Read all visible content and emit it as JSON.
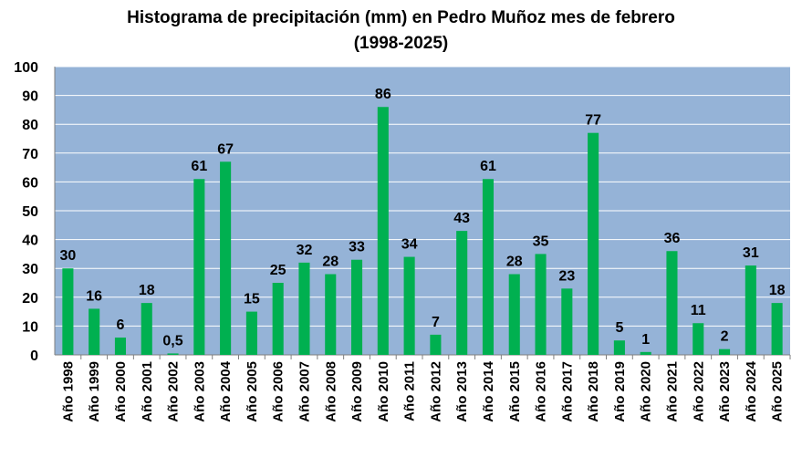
{
  "colors": {
    "plot_background": "#95b3d7",
    "bar": "#00b050",
    "gridline": "#ffffff",
    "axis": "#7f7f7f"
  },
  "chart_data": {
    "type": "bar",
    "title_line1": "Histograma de precipitación (mm) en Pedro Muñoz mes de febrero",
    "title_line2": "(1998-2025)",
    "xlabel": "",
    "ylabel": "",
    "ylim": [
      0,
      100
    ],
    "yticks": [
      0,
      10,
      20,
      30,
      40,
      50,
      60,
      70,
      80,
      90,
      100
    ],
    "grid": true,
    "legend": "none",
    "categories": [
      "Año 1998",
      "Año 1999",
      "Año 2000",
      "Año 2001",
      "Año 2002",
      "Año 2003",
      "Año 2004",
      "Año 2005",
      "Año 2006",
      "Año 2007",
      "Año 2008",
      "Año 2009",
      "Año 2010",
      "Año 2011",
      "Año 2012",
      "Año 2013",
      "Año 2014",
      "Año 2015",
      "Año 2016",
      "Año 2017",
      "Año 2018",
      "Año 2019",
      "Año 2020",
      "Año 2021",
      "Año 2022",
      "Año 2023",
      "Año 2024",
      "Año 2025"
    ],
    "values": [
      30,
      16,
      6,
      18,
      0.5,
      61,
      67,
      15,
      25,
      32,
      28,
      33,
      86,
      34,
      7,
      43,
      61,
      28,
      35,
      23,
      77,
      5,
      1,
      36,
      11,
      2,
      31,
      18
    ],
    "value_labels": [
      "30",
      "16",
      "6",
      "18",
      "0,5",
      "61",
      "67",
      "15",
      "25",
      "32",
      "28",
      "33",
      "86",
      "34",
      "7",
      "43",
      "61",
      "28",
      "35",
      "23",
      "77",
      "5",
      "1",
      "36",
      "11",
      "2",
      "31",
      "18"
    ]
  }
}
